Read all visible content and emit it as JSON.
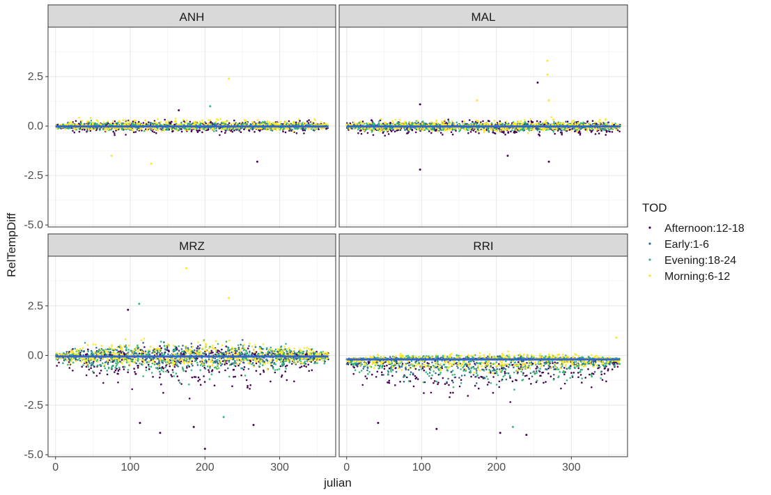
{
  "chart_data": {
    "type": "scatter",
    "facet_layout": "2x2 grid, shared axes",
    "xlabel": "julian",
    "ylabel": "RelTempDiff",
    "xlim": [
      -10,
      375
    ],
    "ylim": [
      -5.1,
      5.0
    ],
    "x_ticks": [
      0,
      100,
      200,
      300
    ],
    "x_tick_labels": [
      "0",
      "100",
      "200",
      "300"
    ],
    "y_ticks": [
      2.5,
      0.0,
      -2.5,
      -5.0
    ],
    "y_tick_labels": [
      "2.5",
      "0.0",
      "-2.5",
      "-5.0"
    ],
    "grid": true,
    "legend": {
      "title": "TOD",
      "position": "right",
      "entries": [
        "Afternoon:12-18",
        "Early:1-6",
        "Evening:18-24",
        "Morning:6-12"
      ]
    },
    "series_colors": {
      "Afternoon:12-18": "#440154",
      "Early:1-6": "#31688e",
      "Evening:18-24": "#35b779",
      "Morning:6-12": "#fde725"
    },
    "trend_line_color": "#3366cc",
    "panels": [
      {
        "name": "ANH",
        "trend_level": -0.02,
        "series_spread": {
          "Afternoon:12-18": {
            "lo": -0.55,
            "hi": 0.45
          },
          "Early:1-6": {
            "lo": -0.25,
            "hi": 0.3
          },
          "Evening:18-24": {
            "lo": -0.3,
            "hi": 0.35
          },
          "Morning:6-12": {
            "lo": -0.3,
            "hi": 0.55
          }
        },
        "outliers": [
          {
            "series": "Morning:6-12",
            "x": 232,
            "y": 2.4
          },
          {
            "series": "Afternoon:12-18",
            "x": 270,
            "y": -1.8
          },
          {
            "series": "Morning:6-12",
            "x": 128,
            "y": -1.9
          },
          {
            "series": "Morning:6-12",
            "x": 75,
            "y": -1.5
          },
          {
            "series": "Evening:18-24",
            "x": 207,
            "y": 1.0
          },
          {
            "series": "Afternoon:12-18",
            "x": 165,
            "y": 0.8
          }
        ]
      },
      {
        "name": "MAL",
        "trend_level": -0.02,
        "series_spread": {
          "Afternoon:12-18": {
            "lo": -0.7,
            "hi": 0.45
          },
          "Early:1-6": {
            "lo": -0.3,
            "hi": 0.3
          },
          "Evening:18-24": {
            "lo": -0.4,
            "hi": 0.35
          },
          "Morning:6-12": {
            "lo": -0.4,
            "hi": 0.55
          }
        },
        "outliers": [
          {
            "series": "Morning:6-12",
            "x": 268,
            "y": 3.3
          },
          {
            "series": "Morning:6-12",
            "x": 268,
            "y": 2.6
          },
          {
            "series": "Afternoon:12-18",
            "x": 255,
            "y": 2.2
          },
          {
            "series": "Afternoon:12-18",
            "x": 98,
            "y": -2.2
          },
          {
            "series": "Morning:6-12",
            "x": 270,
            "y": 1.3
          },
          {
            "series": "Morning:6-12",
            "x": 174,
            "y": 1.3
          },
          {
            "series": "Afternoon:12-18",
            "x": 98,
            "y": 1.1
          },
          {
            "series": "Afternoon:12-18",
            "x": 270,
            "y": -1.8
          },
          {
            "series": "Afternoon:12-18",
            "x": 215,
            "y": -1.5
          }
        ]
      },
      {
        "name": "MRZ",
        "trend_level": -0.05,
        "series_spread": {
          "Afternoon:12-18": {
            "lo": -2.2,
            "hi": 0.7
          },
          "Early:1-6": {
            "lo": -0.9,
            "hi": 0.9
          },
          "Evening:18-24": {
            "lo": -1.4,
            "hi": 1.0
          },
          "Morning:6-12": {
            "lo": -0.8,
            "hi": 1.2
          }
        },
        "outliers": [
          {
            "series": "Morning:6-12",
            "x": 175,
            "y": 4.4
          },
          {
            "series": "Morning:6-12",
            "x": 232,
            "y": 2.9
          },
          {
            "series": "Evening:18-24",
            "x": 112,
            "y": 2.6
          },
          {
            "series": "Afternoon:12-18",
            "x": 97,
            "y": 2.3
          },
          {
            "series": "Afternoon:12-18",
            "x": 200,
            "y": -4.7
          },
          {
            "series": "Afternoon:12-18",
            "x": 140,
            "y": -3.9
          },
          {
            "series": "Afternoon:12-18",
            "x": 185,
            "y": -3.6
          },
          {
            "series": "Afternoon:12-18",
            "x": 265,
            "y": -3.5
          },
          {
            "series": "Afternoon:12-18",
            "x": 113,
            "y": -3.4
          },
          {
            "series": "Evening:18-24",
            "x": 225,
            "y": -3.1
          }
        ]
      },
      {
        "name": "RRI",
        "trend_level": -0.2,
        "series_spread": {
          "Afternoon:12-18": {
            "lo": -2.6,
            "hi": 0.1
          },
          "Early:1-6": {
            "lo": -1.5,
            "hi": 0.2
          },
          "Evening:18-24": {
            "lo": -1.9,
            "hi": 0.3
          },
          "Morning:6-12": {
            "lo": -0.9,
            "hi": 0.5
          }
        },
        "outliers": [
          {
            "series": "Afternoon:12-18",
            "x": 240,
            "y": -4.0
          },
          {
            "series": "Afternoon:12-18",
            "x": 205,
            "y": -3.9
          },
          {
            "series": "Afternoon:12-18",
            "x": 120,
            "y": -3.7
          },
          {
            "series": "Afternoon:12-18",
            "x": 42,
            "y": -3.4
          },
          {
            "series": "Evening:18-24",
            "x": 222,
            "y": -3.6
          },
          {
            "series": "Morning:6-12",
            "x": 360,
            "y": 0.9
          }
        ]
      }
    ]
  }
}
